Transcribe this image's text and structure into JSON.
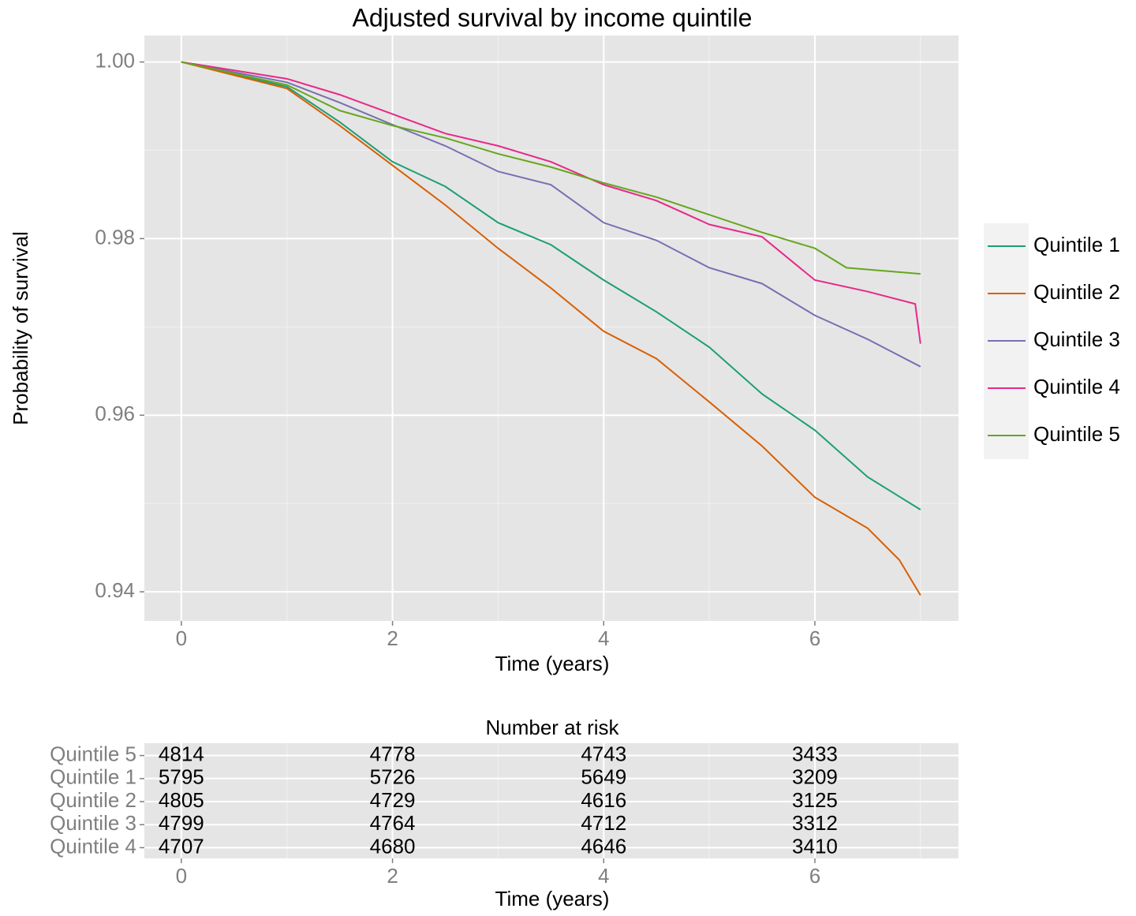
{
  "chart_data": [
    {
      "type": "line",
      "title": "Adjusted survival by income quintile",
      "xlabel": "Time (years)",
      "ylabel": "Probability of survival",
      "xlim": [
        -0.35,
        7.36
      ],
      "ylim": [
        0.9367,
        1.003
      ],
      "xticks": [
        0,
        2,
        4,
        6
      ],
      "yticks": [
        0.94,
        0.96,
        0.98,
        {
          "value": 1,
          "label": "1.00"
        }
      ],
      "minor_xticks": [
        1,
        3,
        5,
        7
      ],
      "minor_yticks": [
        0.95,
        0.97,
        0.99
      ],
      "grid": true,
      "series": [
        {
          "name": "Quintile 1",
          "color": "#1b9e77",
          "x": [
            0,
            1,
            1.5,
            2,
            2.5,
            3,
            3.5,
            4,
            4.5,
            5,
            5.5,
            6,
            6.5,
            7
          ],
          "values": [
            1.0,
            0.9972,
            0.9932,
            0.9887,
            0.9859,
            0.9818,
            0.9793,
            0.9753,
            0.9717,
            0.9677,
            0.9624,
            0.9583,
            0.953,
            0.9493
          ]
        },
        {
          "name": "Quintile 2",
          "color": "#d95f02",
          "x": [
            0,
            1,
            1.5,
            2,
            2.5,
            3,
            3.5,
            4,
            4.5,
            5,
            5.5,
            6,
            6.5,
            6.8,
            7
          ],
          "values": [
            1.0,
            0.997,
            0.9928,
            0.9883,
            0.9838,
            0.9789,
            0.9744,
            0.9695,
            0.9664,
            0.9615,
            0.9565,
            0.9507,
            0.9472,
            0.9436,
            0.9396
          ]
        },
        {
          "name": "Quintile 3",
          "color": "#7570b3",
          "x": [
            0,
            1,
            1.5,
            2,
            2.5,
            3,
            3.5,
            4,
            4.5,
            5,
            5.5,
            6,
            6.5,
            7
          ],
          "values": [
            1.0,
            0.9977,
            0.9954,
            0.9929,
            0.9905,
            0.9876,
            0.9861,
            0.9818,
            0.9798,
            0.9767,
            0.9749,
            0.9713,
            0.9686,
            0.9655
          ]
        },
        {
          "name": "Quintile 4",
          "color": "#e7298a",
          "x": [
            0,
            1,
            1.5,
            2,
            2.5,
            3,
            3.5,
            4,
            4.5,
            5,
            5.5,
            6,
            6.5,
            6.95,
            7
          ],
          "values": [
            1.0,
            0.9981,
            0.9963,
            0.9941,
            0.9919,
            0.9905,
            0.9887,
            0.9861,
            0.9843,
            0.9816,
            0.9802,
            0.9753,
            0.974,
            0.9726,
            0.9681
          ]
        },
        {
          "name": "Quintile 5",
          "color": "#66a61e",
          "x": [
            0,
            1,
            1.5,
            2,
            2.5,
            3,
            3.5,
            4,
            4.5,
            5,
            5.5,
            6,
            6.3,
            7
          ],
          "values": [
            1.0,
            0.9974,
            0.9945,
            0.9928,
            0.9914,
            0.9896,
            0.9881,
            0.9863,
            0.9847,
            0.9827,
            0.9807,
            0.9789,
            0.9767,
            0.976
          ]
        }
      ]
    },
    {
      "type": "table",
      "title": "Number at risk",
      "xlabel": "Time (years)",
      "xlim": [
        -0.35,
        7.36
      ],
      "xticks": [
        0,
        2,
        4,
        6
      ],
      "minor_xticks": [
        1,
        3,
        5,
        7
      ],
      "rows": [
        {
          "name": "Quintile 5",
          "values": [
            "4814",
            "4778",
            "4743",
            "3433"
          ]
        },
        {
          "name": "Quintile 1",
          "values": [
            "5795",
            "5726",
            "5649",
            "3209"
          ]
        },
        {
          "name": "Quintile 2",
          "values": [
            "4805",
            "4729",
            "4616",
            "3125"
          ]
        },
        {
          "name": "Quintile 3",
          "values": [
            "4799",
            "4764",
            "4712",
            "3312"
          ]
        },
        {
          "name": "Quintile 4",
          "values": [
            "4707",
            "4680",
            "4646",
            "3410"
          ]
        }
      ]
    }
  ]
}
